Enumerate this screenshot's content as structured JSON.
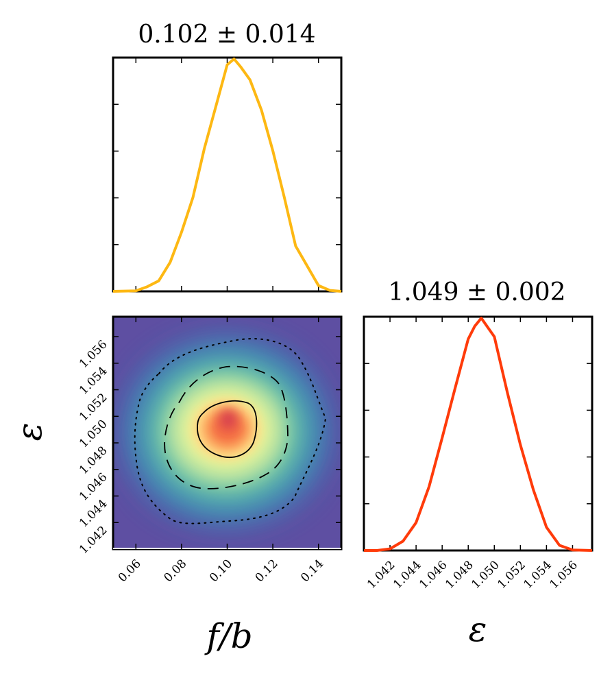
{
  "chart_data": [
    {
      "type": "line",
      "panel": "marginal-f-over-b",
      "title": "0.102 ± 0.014",
      "xlabel": "",
      "ylabel": "",
      "xlim": [
        0.05,
        0.15
      ],
      "color": "#fdb813",
      "x": [
        0.05,
        0.06,
        0.065,
        0.07,
        0.075,
        0.08,
        0.085,
        0.09,
        0.095,
        0.1,
        0.103,
        0.106,
        0.11,
        0.115,
        0.12,
        0.125,
        0.13,
        0.135,
        0.14,
        0.145,
        0.15
      ],
      "y": [
        0.0,
        0.002,
        0.02,
        0.045,
        0.125,
        0.255,
        0.405,
        0.615,
        0.795,
        0.975,
        1.0,
        0.965,
        0.91,
        0.78,
        0.605,
        0.405,
        0.195,
        0.11,
        0.025,
        0.004,
        0.0
      ]
    },
    {
      "type": "heatmap",
      "panel": "joint-f-over-b-epsilon",
      "colormap": "Spectral_r",
      "xlabel": "f/b",
      "ylabel": "ε",
      "xlim": [
        0.05,
        0.15
      ],
      "ylim": [
        1.04,
        1.0575
      ],
      "xticks": [
        0.06,
        0.08,
        0.1,
        0.12,
        0.14
      ],
      "xtick_labels": [
        "0.06",
        "0.08",
        "0.10",
        "0.12",
        "0.14"
      ],
      "yticks": [
        1.042,
        1.044,
        1.046,
        1.048,
        1.05,
        1.052,
        1.054,
        1.056
      ],
      "ytick_labels": [
        "1.042",
        "1.044",
        "1.046",
        "1.048",
        "1.050",
        "1.052",
        "1.054",
        "1.056"
      ],
      "peak": {
        "x": 0.102,
        "y": 1.049
      },
      "contours": [
        {
          "level": "inner",
          "style": "solid"
        },
        {
          "level": "middle",
          "style": "dashed"
        },
        {
          "level": "outer",
          "style": "dotted"
        }
      ]
    },
    {
      "type": "line",
      "panel": "marginal-epsilon",
      "title": "1.049 ± 0.002",
      "xlabel": "ε",
      "ylabel": "",
      "xlim": [
        1.04,
        1.0575
      ],
      "color": "#ff3b0a",
      "xticks": [
        1.042,
        1.044,
        1.046,
        1.048,
        1.05,
        1.052,
        1.054,
        1.056
      ],
      "xtick_labels": [
        "1.042",
        "1.044",
        "1.046",
        "1.048",
        "1.050",
        "1.052",
        "1.054",
        "1.056"
      ],
      "x": [
        1.04,
        1.041,
        1.042,
        1.043,
        1.044,
        1.045,
        1.046,
        1.047,
        1.048,
        1.0485,
        1.049,
        1.0495,
        1.05,
        1.051,
        1.052,
        1.053,
        1.054,
        1.055,
        1.056,
        1.0575
      ],
      "y": [
        0.0,
        0.0,
        0.007,
        0.04,
        0.12,
        0.275,
        0.485,
        0.7,
        0.91,
        0.965,
        1.0,
        0.96,
        0.92,
        0.68,
        0.455,
        0.26,
        0.1,
        0.022,
        0.002,
        0.0
      ]
    }
  ]
}
